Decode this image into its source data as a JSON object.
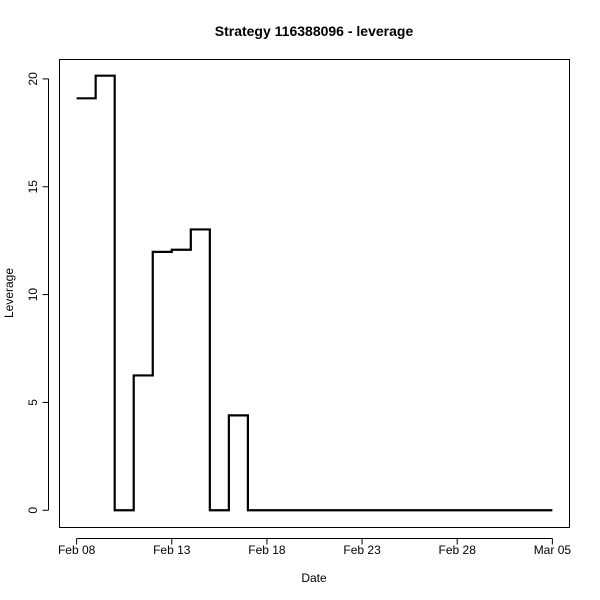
{
  "chart_data": {
    "type": "line",
    "step": true,
    "title": "Strategy 116388096 - leverage",
    "xlabel": "Date",
    "ylabel": "Leverage",
    "x_unit": "days since Feb 08",
    "xlim": [
      -0.9,
      25.9
    ],
    "ylim": [
      -0.8,
      20.9
    ],
    "x_ticks": [
      {
        "value": 0,
        "label": "Feb 08"
      },
      {
        "value": 5,
        "label": "Feb 13"
      },
      {
        "value": 10,
        "label": "Feb 18"
      },
      {
        "value": 15,
        "label": "Feb 23"
      },
      {
        "value": 20,
        "label": "Feb 28"
      },
      {
        "value": 25,
        "label": "Mar 05"
      }
    ],
    "y_ticks": [
      {
        "value": 0,
        "label": "0"
      },
      {
        "value": 5,
        "label": "5"
      },
      {
        "value": 10,
        "label": "10"
      },
      {
        "value": 15,
        "label": "15"
      },
      {
        "value": 20,
        "label": "20"
      }
    ],
    "series": [
      {
        "name": "leverage",
        "x": [
          0,
          1,
          2,
          3,
          4,
          5,
          6,
          7,
          8,
          9,
          10,
          11,
          12,
          13,
          14,
          15,
          16,
          17,
          18,
          19,
          20,
          21,
          22,
          23,
          24,
          25
        ],
        "values": [
          19.1,
          20.15,
          0,
          6.25,
          11.98,
          12.08,
          13.02,
          0,
          4.4,
          0,
          0,
          0,
          0,
          0,
          0,
          0,
          0,
          0,
          0,
          0,
          0,
          0,
          0,
          0,
          0,
          0
        ]
      }
    ]
  }
}
